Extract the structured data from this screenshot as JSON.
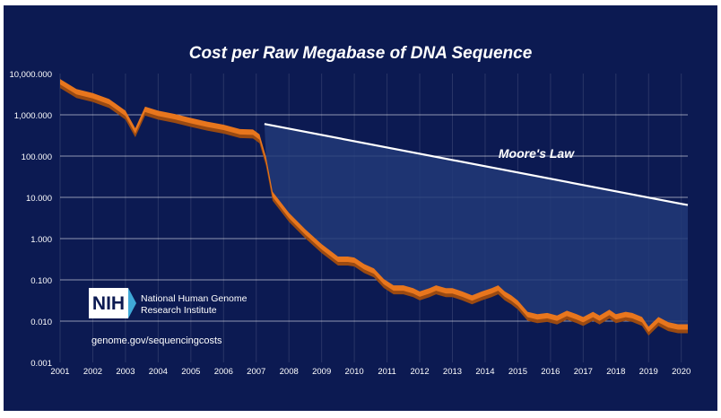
{
  "chart_data": {
    "type": "line",
    "title": "Cost per Raw Megabase of DNA Sequence",
    "xlabel": "",
    "ylabel": "",
    "y_scale": "log",
    "ylim": [
      0.001,
      10000
    ],
    "y_ticks": [
      10000,
      1000,
      100,
      10,
      1,
      0.1,
      0.01,
      0.001
    ],
    "y_tick_labels": [
      "10,000.000",
      "1,000.000",
      "100.000",
      "10.000",
      "1.000",
      "0.100",
      "0.010",
      "0.001"
    ],
    "x_ticks": [
      2001,
      2002,
      2003,
      2004,
      2005,
      2006,
      2007,
      2008,
      2009,
      2010,
      2011,
      2012,
      2013,
      2014,
      2015,
      2016,
      2017,
      2018,
      2019,
      2020
    ],
    "x_tick_labels": [
      "2001",
      "2002",
      "2003",
      "2004",
      "2005",
      "2006",
      "2007",
      "2008",
      "2009",
      "2010",
      "2011",
      "2012",
      "2013",
      "2014",
      "2015",
      "2016",
      "2017",
      "2018",
      "2019",
      "2020"
    ],
    "xlim": [
      2001,
      2020.2
    ],
    "grid": true,
    "series": [
      {
        "name": "Cost per Raw Megabase",
        "color": "#e8761d",
        "x": [
          2001.0,
          2001.5,
          2002.0,
          2002.5,
          2003.0,
          2003.3,
          2003.6,
          2004.0,
          2004.5,
          2005.0,
          2005.5,
          2006.0,
          2006.5,
          2006.9,
          2007.1,
          2007.3,
          2007.5,
          2008.0,
          2008.5,
          2009.0,
          2009.5,
          2009.8,
          2010.0,
          2010.3,
          2010.6,
          2010.9,
          2011.2,
          2011.5,
          2011.8,
          2012.0,
          2012.3,
          2012.5,
          2012.8,
          2013.0,
          2013.3,
          2013.6,
          2013.9,
          2014.2,
          2014.4,
          2014.6,
          2014.8,
          2015.0,
          2015.3,
          2015.6,
          2015.9,
          2016.2,
          2016.5,
          2016.8,
          2017.0,
          2017.3,
          2017.5,
          2017.8,
          2018.0,
          2018.3,
          2018.5,
          2018.8,
          2019.0,
          2019.3,
          2019.6,
          2019.9,
          2020.2
        ],
        "values": [
          7000,
          4000,
          3200,
          2300,
          1200,
          450,
          1500,
          1200,
          1000,
          800,
          650,
          550,
          430,
          420,
          320,
          90,
          13,
          4,
          1.6,
          0.7,
          0.35,
          0.35,
          0.33,
          0.23,
          0.18,
          0.1,
          0.07,
          0.07,
          0.06,
          0.05,
          0.06,
          0.07,
          0.06,
          0.06,
          0.05,
          0.04,
          0.05,
          0.06,
          0.07,
          0.05,
          0.04,
          0.03,
          0.016,
          0.014,
          0.015,
          0.013,
          0.017,
          0.014,
          0.012,
          0.016,
          0.013,
          0.018,
          0.014,
          0.016,
          0.015,
          0.012,
          0.007,
          0.012,
          0.009,
          0.008,
          0.008
        ]
      },
      {
        "name": "Moore's Law",
        "color": "#ffffff",
        "x": [
          2007.25,
          2020.2
        ],
        "values": [
          600,
          6.5
        ]
      }
    ],
    "annotations": [
      {
        "text": "Moore's Law"
      }
    ]
  },
  "branding": {
    "logo_text": "NIH",
    "institute_line1": "National Human Genome",
    "institute_line2": "Research Institute",
    "url": "genome.gov/sequencingcosts"
  },
  "colors": {
    "background": "#0c1a52",
    "gap_fill": "#223a78",
    "cost_line": "#e8761d",
    "cost_line_shade": "#9a4a12",
    "moores_law": "#ffffff",
    "grid": "#ffffff"
  }
}
